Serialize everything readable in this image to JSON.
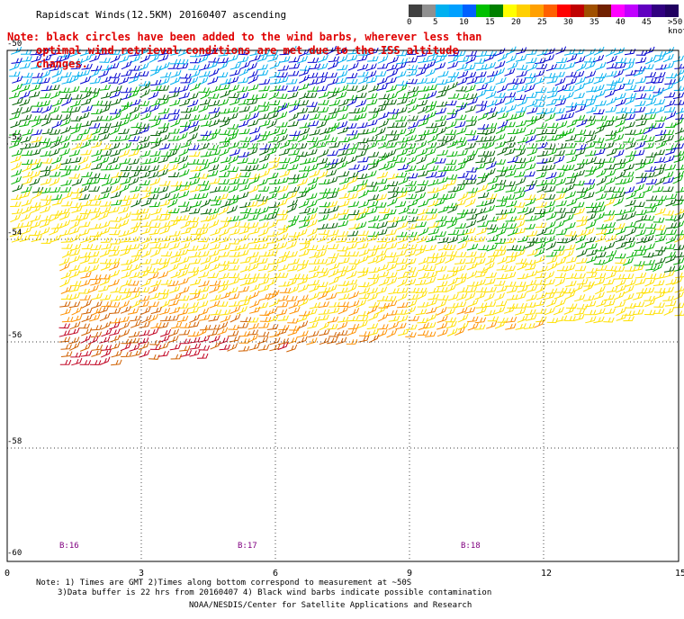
{
  "title": "Rapidscat Winds(12.5KM) 20160407 ascending",
  "note": {
    "line1": "Note: black circles have been added to the wind barbs, wherever less than",
    "line2": "optimal wind retrieval conditions are met due to the ISS altitude changes."
  },
  "legend": {
    "labels": [
      "0",
      "5",
      "10",
      "15",
      "20",
      "25",
      "30",
      "35",
      "40",
      "45",
      ">50 knots"
    ],
    "colors": [
      "#404040",
      "#909090",
      "#00b0f0",
      "#00a0ff",
      "#0060ff",
      "#00c000",
      "#008000",
      "#ffff00",
      "#ffd000",
      "#ffa000",
      "#ff6000",
      "#ff0000",
      "#c00000",
      "#a05000",
      "#702000",
      "#ff00ff",
      "#c000ff",
      "#6000c0",
      "#300080",
      "#200060"
    ]
  },
  "axes": {
    "y_labels": [
      "-50",
      "-52",
      "-54",
      "-56",
      "-58",
      "-60"
    ],
    "x_labels": [
      "0",
      "3",
      "6",
      "9",
      "12",
      "15"
    ]
  },
  "time_labels": [
    "B:16",
    "B:17",
    "B:18"
  ],
  "footnote": {
    "line1": "Note: 1) Times are GMT 2)Times along bottom correspond to measurement at ~50S",
    "line2": "3)Data buffer is 22 hrs from 20160407 4) Black wind barbs indicate possible contamination"
  },
  "credit": "NOAA/NESDIS/Center for Satellite Applications and Research",
  "colors": {
    "barb_light_blue": "#00b0f0",
    "barb_blue": "#0000d0",
    "barb_green": "#00b000",
    "barb_dark_green": "#006000",
    "barb_yellow": "#ffe000",
    "barb_orange": "#ff9000",
    "barb_dark_orange": "#d06000",
    "barb_red": "#c00020",
    "note_red": "#e00000",
    "time_purple": "#800080"
  }
}
